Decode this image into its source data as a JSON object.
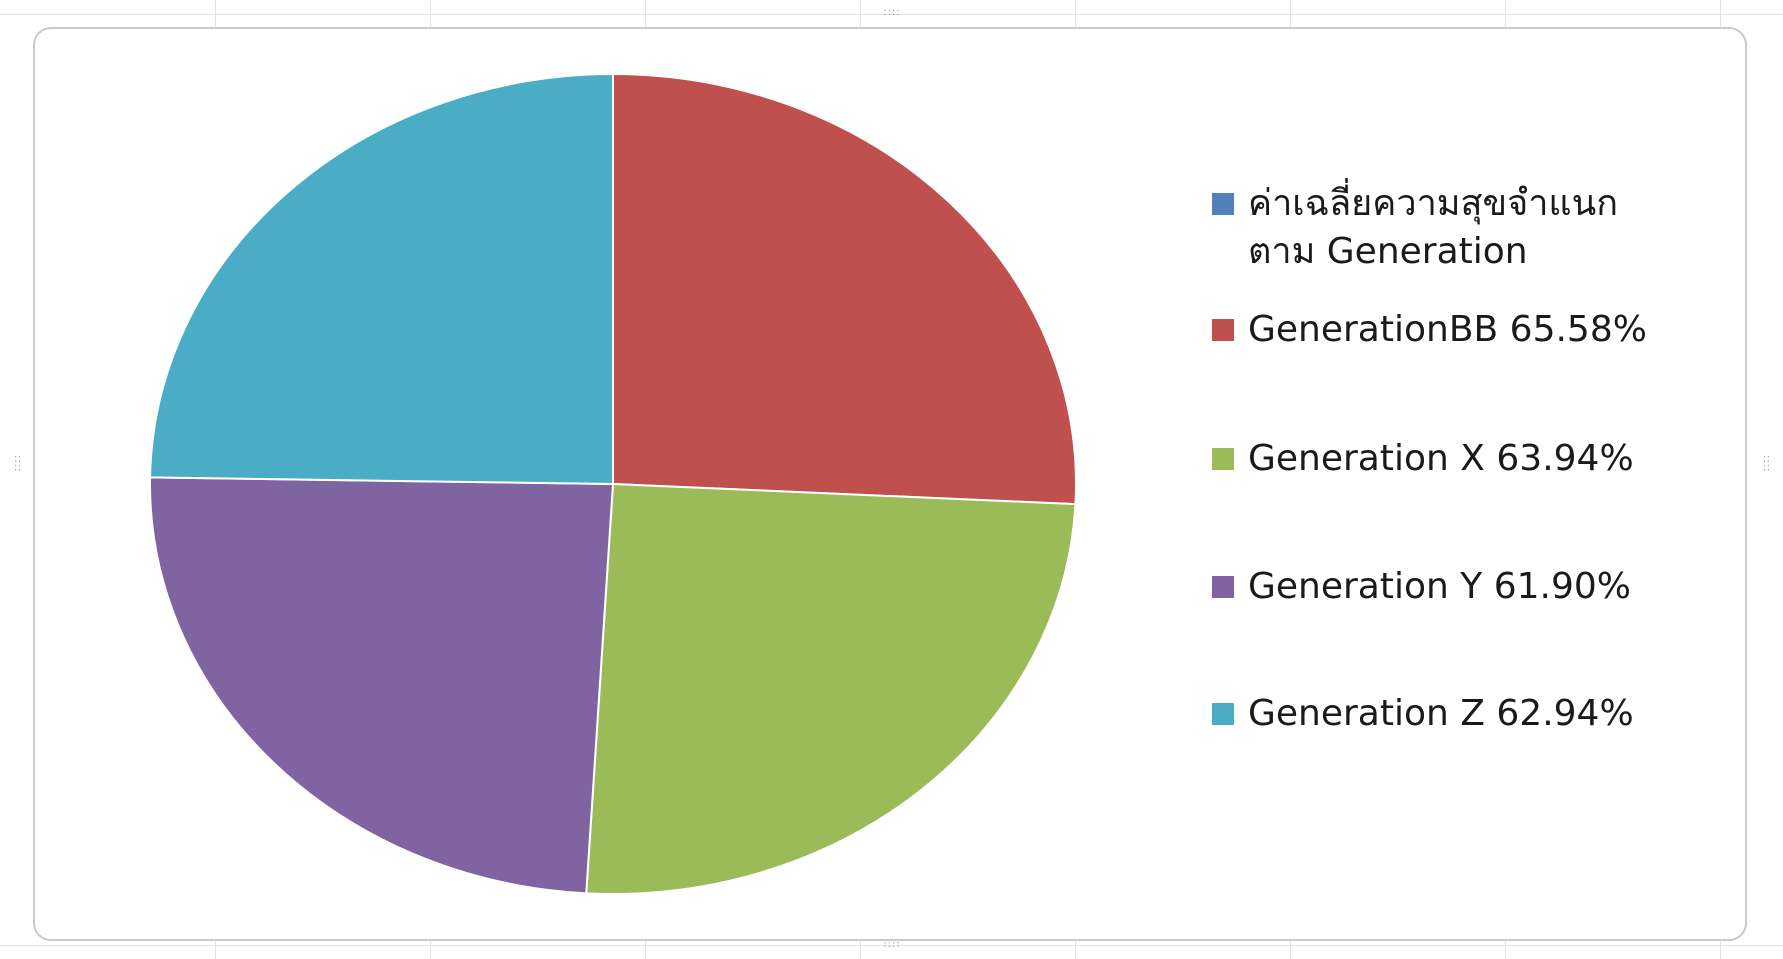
{
  "chart_data": {
    "type": "pie",
    "title": "",
    "categories": [
      "ค่าเฉลี่ยความสุขจำแนกตาม Generation",
      "GenerationBB 65.58%",
      "Generation X 63.94%",
      "Generation Y 61.90%",
      "Generation Z 62.94%"
    ],
    "values": [
      0,
      65.58,
      63.94,
      61.9,
      62.94
    ],
    "colors": [
      "#4F81BD",
      "#C0504D",
      "#9BBB59",
      "#8064A2",
      "#4BACC6"
    ],
    "legend_position": "right",
    "start_angle": "12 o'clock",
    "direction": "clockwise"
  },
  "legend": {
    "items": [
      {
        "label": "ค่าเฉลี่ยความสุขจำแนก\nตาม Generation",
        "color": "#4F81BD"
      },
      {
        "label": "GenerationBB 65.58%",
        "color": "#C0504D"
      },
      {
        "label": "Generation X 63.94%",
        "color": "#9BBB59"
      },
      {
        "label": "Generation Y 61.90%",
        "color": "#8064A2"
      },
      {
        "label": "Generation Z 62.94%",
        "color": "#4BACC6"
      }
    ]
  }
}
